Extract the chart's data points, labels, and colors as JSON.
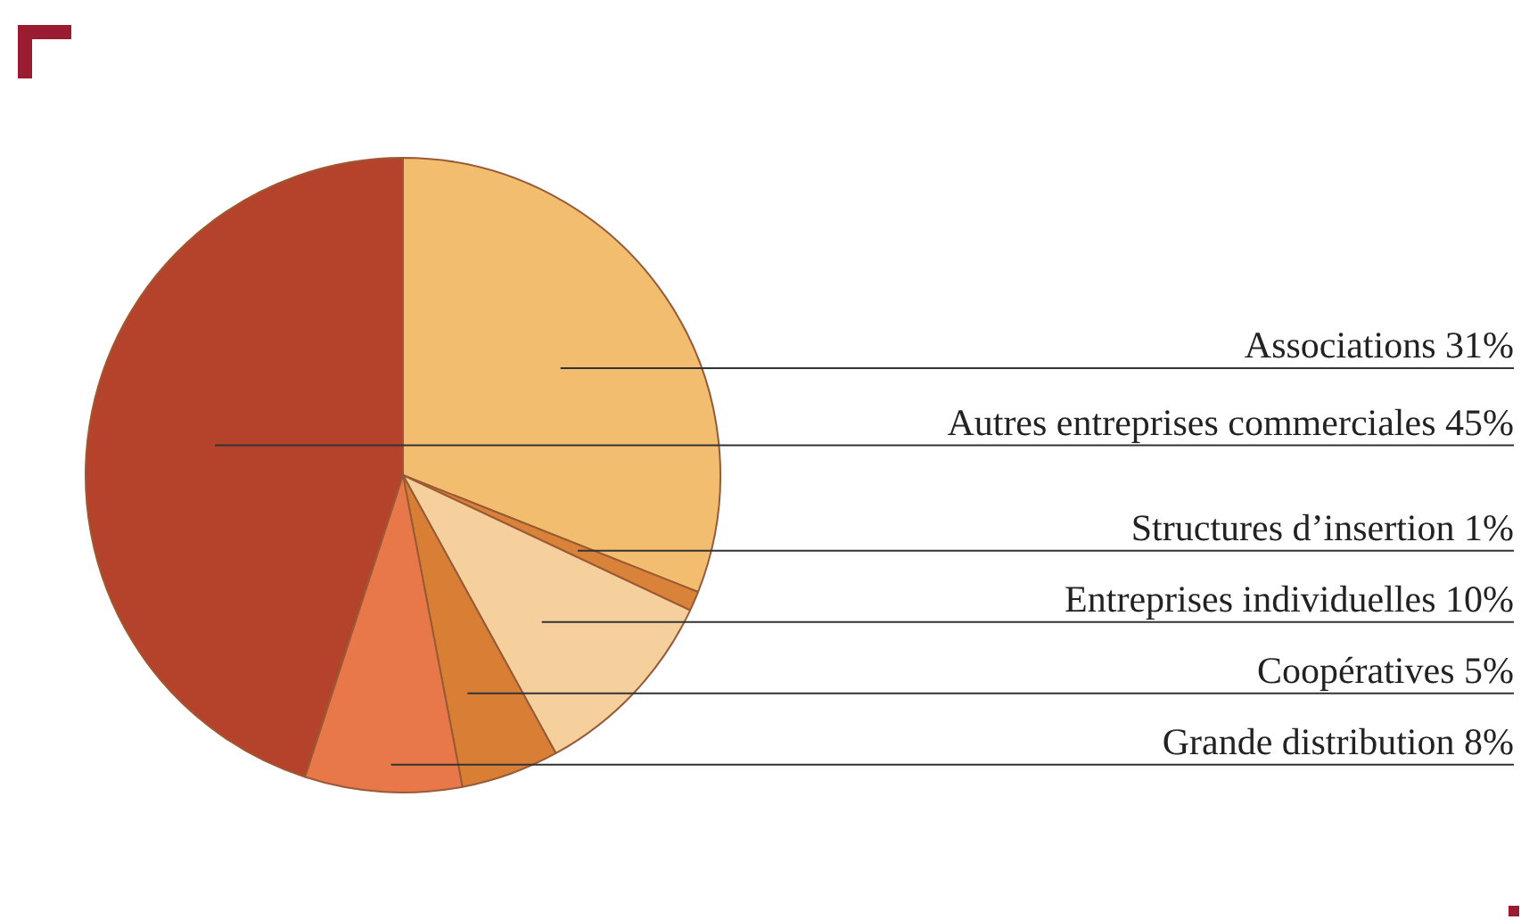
{
  "chart_data": {
    "type": "pie",
    "categories": [
      "Associations",
      "Structures d’insertion",
      "Entreprises individuelles",
      "Coopératives",
      "Grande distribution",
      "Autres entreprises commerciales"
    ],
    "values": [
      31,
      1,
      10,
      5,
      8,
      45
    ],
    "value_labels": [
      "31%",
      "1%",
      "10%",
      "5%",
      "8%",
      "45%"
    ],
    "colors": [
      "#f2bd6e",
      "#d9823a",
      "#f5cf9c",
      "#d97f35",
      "#e8784a",
      "#b5432c"
    ],
    "legend": false
  }
}
